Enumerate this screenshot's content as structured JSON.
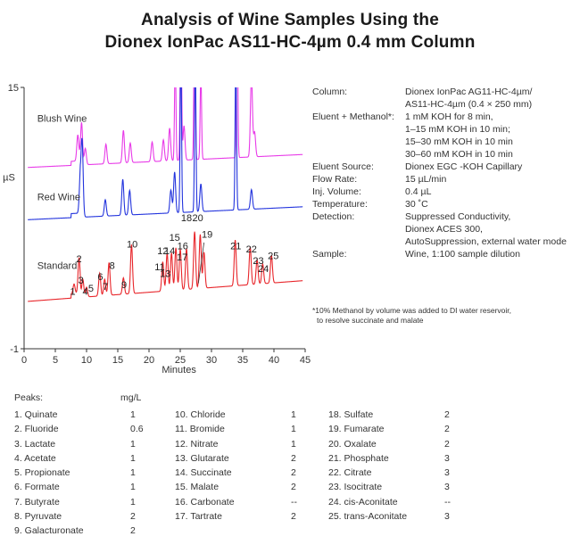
{
  "title_line1": "Analysis of Wine Samples Using the",
  "title_line2": "Dionex IonPac AS11-HC-4µm 0.4 mm Column",
  "chart_data": {
    "type": "line",
    "xlabel": "Minutes",
    "ylabel": "µS",
    "xlim": [
      0,
      45
    ],
    "ylim": [
      -1,
      15
    ],
    "x_ticks": [
      "0",
      "5",
      "10",
      "15",
      "20",
      "25",
      "30",
      "35",
      "40",
      "45"
    ],
    "y_ticks": [
      "15",
      "-1"
    ],
    "colors": {
      "blush": "#e83ae8",
      "red": "#2233dd",
      "standard": "#e8252a"
    },
    "series": [
      {
        "name": "Blush Wine",
        "offset": 10.1,
        "peaks": [
          [
            8.6,
            1.6
          ],
          [
            9.2,
            2.6
          ],
          [
            9.8,
            1.0
          ],
          [
            13.1,
            1.2
          ],
          [
            15.9,
            2.0
          ],
          [
            17.0,
            1.2
          ],
          [
            20.5,
            1.2
          ],
          [
            22.3,
            1.3
          ],
          [
            23.3,
            2.0
          ],
          [
            24.2,
            6.5
          ],
          [
            25.1,
            10
          ],
          [
            25.6,
            2.1
          ],
          [
            27.3,
            10
          ],
          [
            28.3,
            5.4
          ],
          [
            34.1,
            10
          ],
          [
            36.4,
            5.0
          ],
          [
            36.9,
            1.5
          ]
        ]
      },
      {
        "name": "Red Wine",
        "offset": 6.9,
        "peaks": [
          [
            9.0,
            2.2
          ],
          [
            9.3,
            4.4
          ],
          [
            13.0,
            1.0
          ],
          [
            15.8,
            2.2
          ],
          [
            16.9,
            1.5
          ],
          [
            23.5,
            1.4
          ],
          [
            24.1,
            2.5
          ],
          [
            25.1,
            10
          ],
          [
            27.4,
            10
          ],
          [
            28.3,
            1.7
          ],
          [
            33.9,
            10
          ],
          [
            36.4,
            1.2
          ]
        ]
      },
      {
        "name": "Standard",
        "offset": 1.9,
        "peaks": [
          [
            8.0,
            0.6
          ],
          [
            8.8,
            2.2
          ],
          [
            9.4,
            1.1
          ],
          [
            10.0,
            0.6
          ],
          [
            12.1,
            1.4
          ],
          [
            12.9,
            1.0
          ],
          [
            13.6,
            2.0
          ],
          [
            15.9,
            1.0
          ],
          [
            17.2,
            3.0
          ],
          [
            22.2,
            1.8
          ],
          [
            22.9,
            2.3
          ],
          [
            23.6,
            2.3
          ],
          [
            24.3,
            2.6
          ],
          [
            25.0,
            2.5
          ],
          [
            26.0,
            2.5
          ],
          [
            27.3,
            3.5
          ],
          [
            28.2,
            3.3
          ],
          [
            28.8,
            2.2
          ],
          [
            33.8,
            2.8
          ],
          [
            36.2,
            2.3
          ],
          [
            37.3,
            1.5
          ],
          [
            38.2,
            1.2
          ],
          [
            39.6,
            1.7
          ]
        ]
      }
    ],
    "peak_labels": [
      {
        "text": "1",
        "x": 7.8,
        "y": 2.3
      },
      {
        "text": "2",
        "x": 8.8,
        "y": 4.3
      },
      {
        "text": "3",
        "x": 9.1,
        "y": 3.0
      },
      {
        "text": "4",
        "x": 9.8,
        "y": 2.3
      },
      {
        "text": "5",
        "x": 10.7,
        "y": 2.5
      },
      {
        "text": "6",
        "x": 12.2,
        "y": 3.2
      },
      {
        "text": "7",
        "x": 13.0,
        "y": 2.6
      },
      {
        "text": "8",
        "x": 14.1,
        "y": 3.9
      },
      {
        "text": "9",
        "x": 16.0,
        "y": 2.7
      },
      {
        "text": "10",
        "x": 17.3,
        "y": 5.2
      },
      {
        "text": "11",
        "x": 21.7,
        "y": 3.8
      },
      {
        "text": "12",
        "x": 22.2,
        "y": 4.8
      },
      {
        "text": "13",
        "x": 22.6,
        "y": 3.4
      },
      {
        "text": "14",
        "x": 23.3,
        "y": 4.8
      },
      {
        "text": "15",
        "x": 24.1,
        "y": 5.6
      },
      {
        "text": "16",
        "x": 25.4,
        "y": 5.1
      },
      {
        "text": "17",
        "x": 25.3,
        "y": 4.4
      },
      {
        "text": "18",
        "x": 26.0,
        "y": 6.8
      },
      {
        "text": "19",
        "x": 29.3,
        "y": 5.8
      },
      {
        "text": "20",
        "x": 27.8,
        "y": 6.8
      },
      {
        "text": "21",
        "x": 33.9,
        "y": 5.1
      },
      {
        "text": "22",
        "x": 36.4,
        "y": 4.9
      },
      {
        "text": "23",
        "x": 37.5,
        "y": 4.2
      },
      {
        "text": "24",
        "x": 38.3,
        "y": 3.7
      },
      {
        "text": "25",
        "x": 39.9,
        "y": 4.5
      }
    ]
  },
  "conditions": [
    {
      "label": "Column:",
      "lines": [
        "Dionex IonPac AG11-HC-4µm/",
        "AS11-HC-4µm (0.4 × 250 mm)"
      ]
    },
    {
      "label": "Eluent + Methanol*:",
      "lines": [
        "1 mM KOH for 8 min,",
        "1–15 mM KOH in 10 min;",
        "15–30 mM KOH in 10 min",
        "30–60 mM KOH in 10 min"
      ]
    },
    {
      "label": "Eluent Source:",
      "lines": [
        "Dionex EGC -KOH Capillary"
      ]
    },
    {
      "label": "Flow Rate:",
      "lines": [
        "15 µL/min"
      ]
    },
    {
      "label": "Inj. Volume:",
      "lines": [
        "0.4 µL"
      ]
    },
    {
      "label": "Temperature:",
      "lines": [
        "30 ˚C"
      ]
    },
    {
      "label": "Detection:",
      "lines": [
        "Suppressed Conductivity,",
        "Dionex ACES 300,",
        "AutoSuppression, external water mode"
      ]
    },
    {
      "label": "Sample:",
      "lines": [
        "Wine, 1:100 sample dilution"
      ]
    }
  ],
  "footnote_line1": "*10% Methanol by volume was added to DI water reservoir,",
  "footnote_line2": "to resolve succinate and malate",
  "peaks_header": "Peaks:",
  "peaks_unit": "mg/L",
  "peaks": [
    {
      "name": "1. Quinate",
      "value": "1"
    },
    {
      "name": "2. Fluoride",
      "value": "0.6"
    },
    {
      "name": "3. Lactate",
      "value": "1"
    },
    {
      "name": "4. Acetate",
      "value": "1"
    },
    {
      "name": "5. Propionate",
      "value": "1"
    },
    {
      "name": "6. Formate",
      "value": "1"
    },
    {
      "name": "7. Butyrate",
      "value": "1"
    },
    {
      "name": "8. Pyruvate",
      "value": "2"
    },
    {
      "name": "9. Galacturonate",
      "value": "2"
    },
    {
      "name": "10. Chloride",
      "value": "1"
    },
    {
      "name": "11. Bromide",
      "value": "1"
    },
    {
      "name": "12. Nitrate",
      "value": "1"
    },
    {
      "name": "13. Glutarate",
      "value": "2"
    },
    {
      "name": "14. Succinate",
      "value": "2"
    },
    {
      "name": "15. Malate",
      "value": "2"
    },
    {
      "name": "16. Carbonate",
      "value": "--"
    },
    {
      "name": "17. Tartrate",
      "value": "2"
    },
    {
      "name": "18. Sulfate",
      "value": "2"
    },
    {
      "name": "19. Fumarate",
      "value": "2"
    },
    {
      "name": "20. Oxalate",
      "value": "2"
    },
    {
      "name": "21. Phosphate",
      "value": "3"
    },
    {
      "name": "22. Citrate",
      "value": "3"
    },
    {
      "name": "23. Isocitrate",
      "value": "3"
    },
    {
      "name": "24. cis-Aconitate",
      "value": "--"
    },
    {
      "name": "25. trans-Aconitate",
      "value": "3"
    }
  ]
}
